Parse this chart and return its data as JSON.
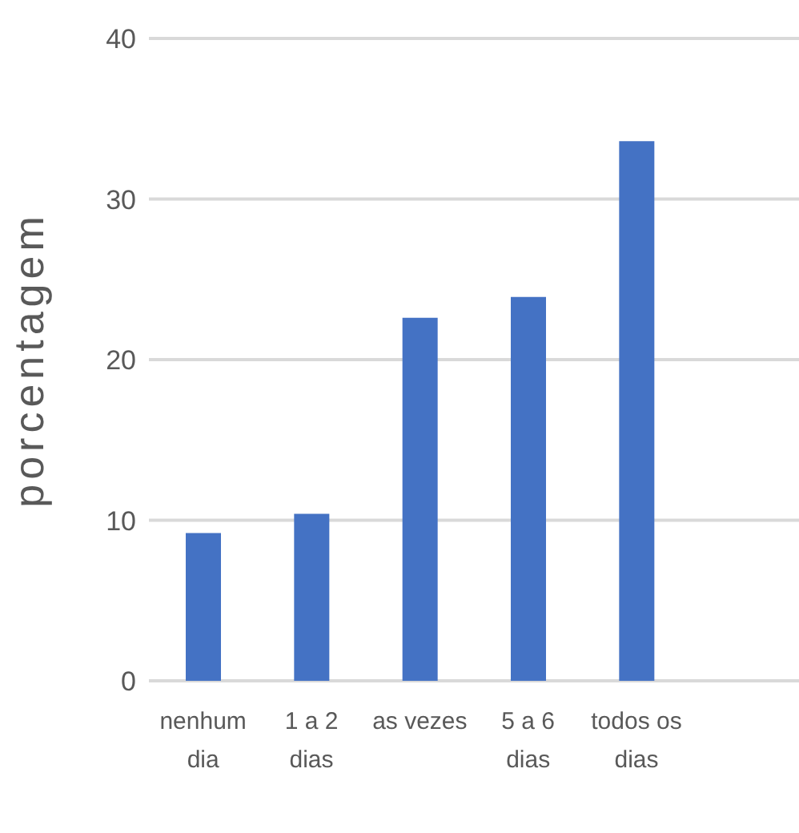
{
  "chart_data": {
    "type": "bar",
    "ylabel": "porcentagem",
    "categories": [
      "nenhum dia",
      "1 a 2 dias",
      "as vezes",
      "5 a 6 dias",
      "todos os dias",
      null
    ],
    "values": [
      9.2,
      10.4,
      22.6,
      23.9,
      33.6,
      null
    ],
    "color": "#4472c4",
    "ylim": [
      0,
      40
    ],
    "yticks": [
      0,
      10,
      20,
      30,
      40
    ],
    "grid": "y"
  }
}
